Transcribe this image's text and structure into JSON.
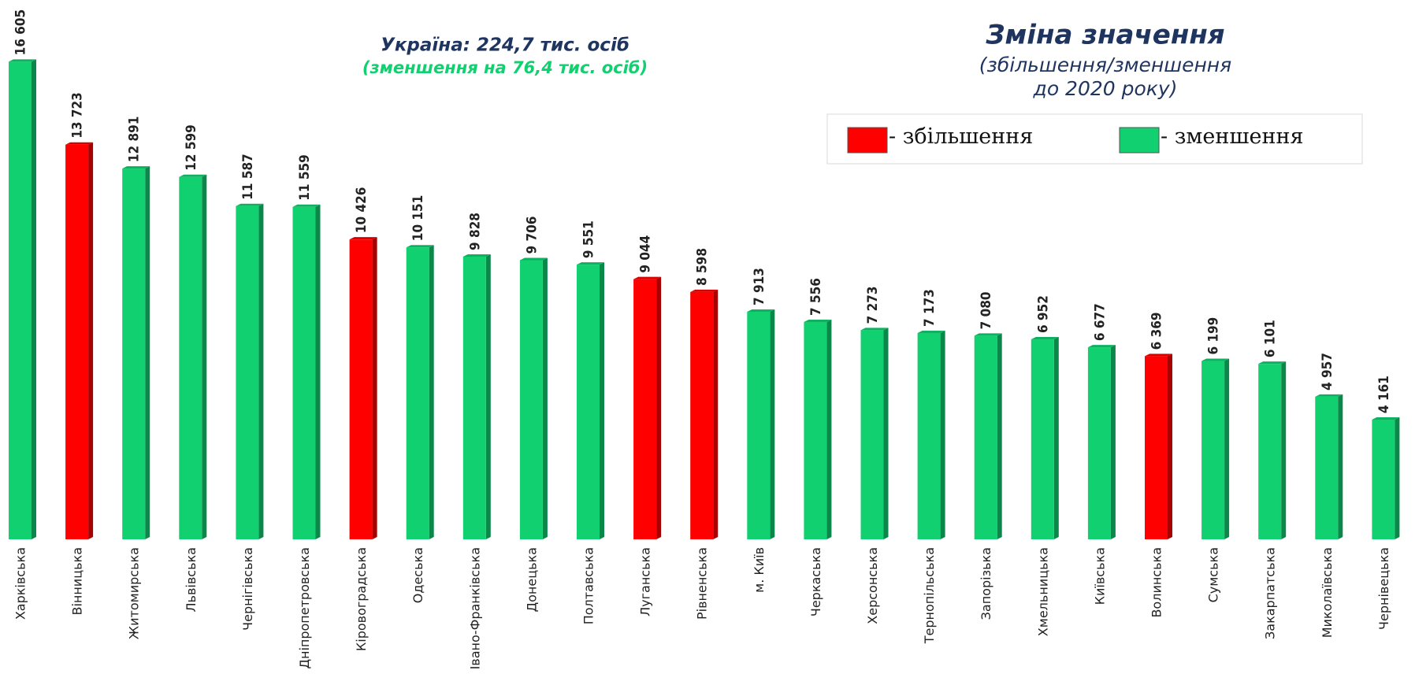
{
  "chart_data": {
    "type": "bar",
    "title": "Зміна значення",
    "subtitle_lines": [
      "(збільшення/зменшення",
      "до 2020 року)"
    ],
    "annotations": [
      "Україна: 224,7 тис. осіб",
      "(зменшення на 76,4 тис. осіб)"
    ],
    "categories": [
      "Харківська",
      "Вінницька",
      "Житомирська",
      "Львівська",
      "Чернігівська",
      "Дніпропетровська",
      "Кіровоградська",
      "Одеська",
      "Івано-Франківська",
      "Донецька",
      "Полтавська",
      "Луганська",
      "Рівненська",
      "м. Київ",
      "Черкаська",
      "Херсонська",
      "Тернопільська",
      "Запорізька",
      "Хмельницька",
      "Київська",
      "Волинська",
      "Сумська",
      "Закарпатська",
      "Миколаївська",
      "Чернівецька"
    ],
    "values": [
      16605,
      13723,
      12891,
      12599,
      11587,
      11559,
      10426,
      10151,
      9828,
      9706,
      9551,
      9044,
      8598,
      7913,
      7556,
      7273,
      7173,
      7080,
      6952,
      6677,
      6369,
      6199,
      6101,
      4957,
      4161
    ],
    "value_labels": [
      "16 605",
      "13 723",
      "12 891",
      "12 599",
      "11 587",
      "11 559",
      "10 426",
      "10 151",
      "9 828",
      "9 706",
      "9 551",
      "9 044",
      "8 598",
      "7 913",
      "7 556",
      "7 273",
      "7 173",
      "7 080",
      "6 952",
      "6 677",
      "6 369",
      "6 199",
      "6 101",
      "4 957",
      "4 161"
    ],
    "colors": [
      "#10d070",
      "#ff0000",
      "#10d070",
      "#10d070",
      "#10d070",
      "#10d070",
      "#ff0000",
      "#10d070",
      "#10d070",
      "#10d070",
      "#10d070",
      "#ff0000",
      "#ff0000",
      "#10d070",
      "#10d070",
      "#10d070",
      "#10d070",
      "#10d070",
      "#10d070",
      "#10d070",
      "#ff0000",
      "#10d070",
      "#10d070",
      "#10d070",
      "#10d070"
    ],
    "legend": [
      {
        "name": "- збільшення",
        "color": "#ff0000"
      },
      {
        "name": "- зменшення",
        "color": "#10d070"
      }
    ],
    "ylim": [
      0,
      17000
    ]
  }
}
